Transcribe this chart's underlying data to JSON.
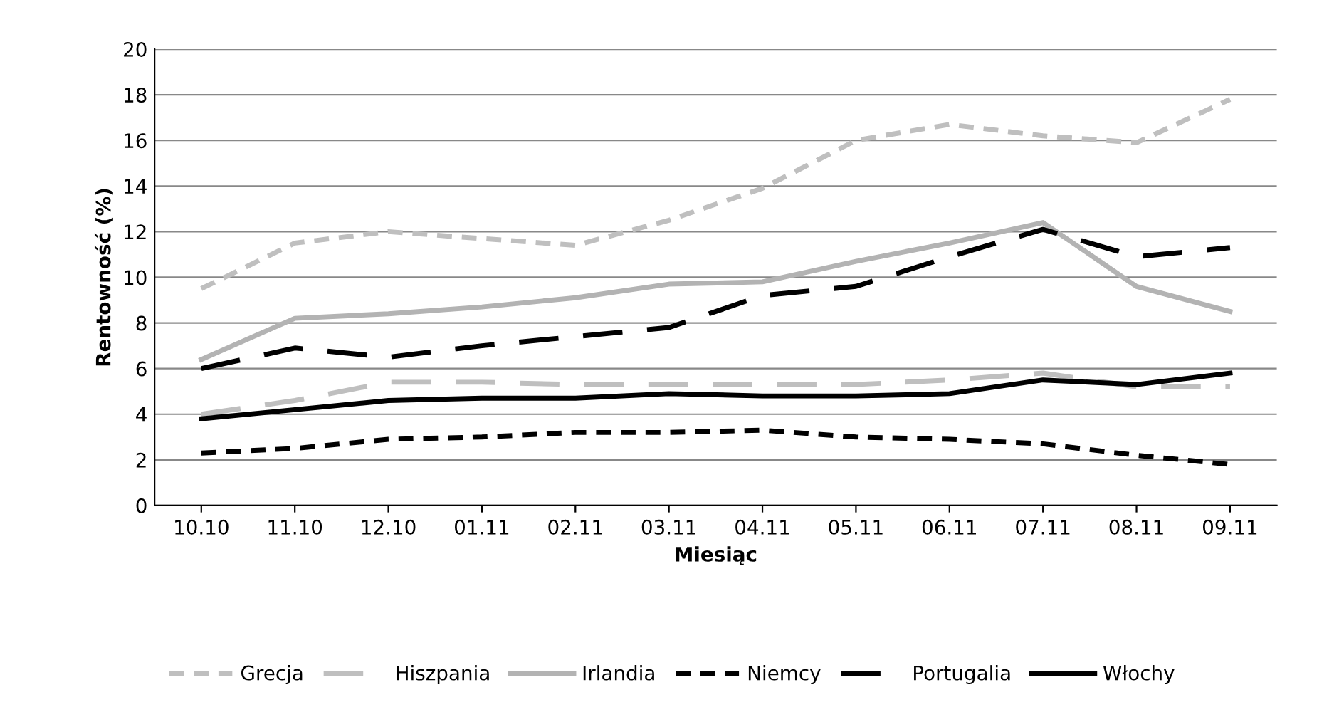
{
  "chart_data": {
    "type": "line",
    "xlabel": "Miesiąc",
    "ylabel": "Rentowność (%)",
    "categories": [
      "10.10",
      "11.10",
      "12.10",
      "01.11",
      "02.11",
      "03.11",
      "04.11",
      "05.11",
      "06.11",
      "07.11",
      "08.11",
      "09.11"
    ],
    "series": [
      {
        "name": "Grecja",
        "color": "#bfbfbf",
        "line_style": "dotted",
        "values": [
          9.5,
          11.5,
          12.0,
          11.7,
          11.4,
          12.5,
          13.9,
          16.0,
          16.7,
          16.2,
          15.9,
          17.8
        ]
      },
      {
        "name": "Hiszpania",
        "color": "#bfbfbf",
        "line_style": "dashed",
        "values": [
          4.0,
          4.6,
          5.4,
          5.4,
          5.3,
          5.3,
          5.3,
          5.3,
          5.5,
          5.8,
          5.2,
          5.2
        ]
      },
      {
        "name": "Irlandia",
        "color": "#b3b3b3",
        "line_style": "solid",
        "values": [
          6.4,
          8.2,
          8.4,
          8.7,
          9.1,
          9.7,
          9.8,
          10.7,
          11.5,
          12.4,
          9.6,
          8.5
        ]
      },
      {
        "name": "Niemcy",
        "color": "#000000",
        "line_style": "dotted",
        "values": [
          2.3,
          2.5,
          2.9,
          3.0,
          3.2,
          3.2,
          3.3,
          3.0,
          2.9,
          2.7,
          2.2,
          1.8
        ]
      },
      {
        "name": "Portugalia",
        "color": "#000000",
        "line_style": "dashed",
        "values": [
          6.0,
          6.9,
          6.5,
          7.0,
          7.4,
          7.8,
          9.2,
          9.6,
          10.9,
          12.1,
          10.9,
          11.3
        ]
      },
      {
        "name": "Włochy",
        "color": "#000000",
        "line_style": "solid",
        "values": [
          3.8,
          4.2,
          4.6,
          4.7,
          4.7,
          4.9,
          4.8,
          4.8,
          4.9,
          5.5,
          5.3,
          5.8
        ]
      }
    ],
    "ylim": [
      0,
      20
    ],
    "yticks": [
      0,
      2,
      4,
      6,
      8,
      10,
      12,
      14,
      16,
      18,
      20
    ],
    "grid": "y",
    "legend": "bottom"
  }
}
